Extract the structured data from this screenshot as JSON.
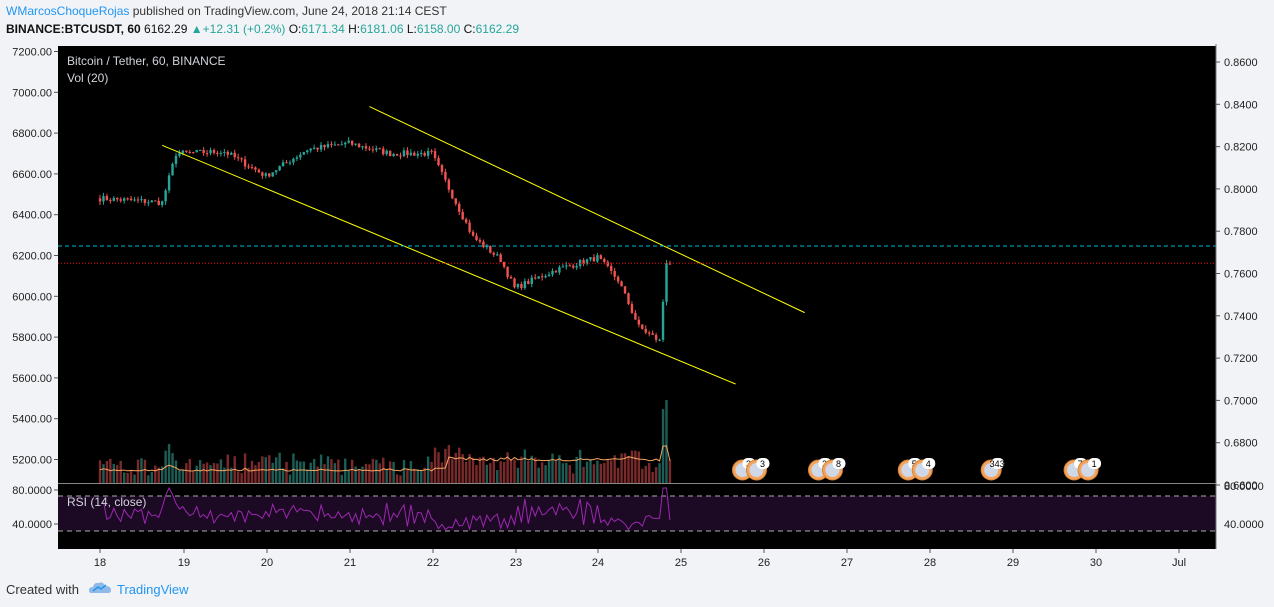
{
  "header": {
    "author": "WMarcosChoqueRojas",
    "published_text": " published on TradingView.com, June 24, 2018 21:14 CEST",
    "symbol_line": "BINANCE:BTCUSDT, 60",
    "last": "6162.29",
    "change": "▲+12.31 (+0.2%)",
    "o_label": "O:",
    "o": "6171.34",
    "h_label": "H:",
    "h": "6181.06",
    "l_label": "L:",
    "l": "6158.00",
    "c_label": "C:",
    "c": "6162.29"
  },
  "legend": {
    "title": "Bitcoin / Tether, 60, BINANCE",
    "volume": "Vol (20)",
    "rsi": "RSI (14, close)"
  },
  "colors": {
    "background": "#000000",
    "up": "#26a69a",
    "down": "#ef5350",
    "trendline": "#ffff00",
    "price_line": "#ff0000",
    "level_line": "#00bcd4",
    "rsi_line": "#9c27b0",
    "rsi_band": "#1c0a24",
    "vol_ma": "#f4a460"
  },
  "footer": {
    "created": "Created with",
    "brand": "TradingView"
  },
  "chart_data": {
    "type": "candlestick",
    "price_axis": {
      "ticks": [
        "7200.00",
        "7000.00",
        "6800.00",
        "6600.00",
        "6400.00",
        "6200.00",
        "6000.00",
        "5800.00",
        "5600.00",
        "5400.00",
        "5200.00"
      ],
      "ylim": [
        5200,
        7200
      ]
    },
    "right_axis": {
      "ticks": [
        "0.8600",
        "0.8400",
        "0.8200",
        "0.8000",
        "0.7800",
        "0.7600",
        "0.7400",
        "0.7200",
        "0.7000",
        "0.6800",
        "0.6600"
      ]
    },
    "rsi_axis": {
      "ticks": [
        "80.0000",
        "40.0000"
      ],
      "right_ticks": [
        "80.0000",
        "40.0000"
      ]
    },
    "x_ticks": [
      "18",
      "19",
      "20",
      "21",
      "22",
      "23",
      "24",
      "25",
      "26",
      "27",
      "28",
      "29",
      "30",
      "Jul"
    ],
    "price_labels": {
      "level": "6246.32",
      "last": "6162.29"
    },
    "levels": {
      "level": 6246.32,
      "last": 6162.29
    },
    "key_closes": [
      {
        "date": "2018-06-18 00:00",
        "value": 6480
      },
      {
        "date": "2018-06-18 18:00",
        "value": 6460
      },
      {
        "date": "2018-06-18 22:00",
        "value": 6700
      },
      {
        "date": "2018-06-19 12:00",
        "value": 6710
      },
      {
        "date": "2018-06-20 00:00",
        "value": 6590
      },
      {
        "date": "2018-06-20 12:00",
        "value": 6720
      },
      {
        "date": "2018-06-21 00:00",
        "value": 6750
      },
      {
        "date": "2018-06-21 12:00",
        "value": 6700
      },
      {
        "date": "2018-06-22 00:00",
        "value": 6700
      },
      {
        "date": "2018-06-22 12:00",
        "value": 6290
      },
      {
        "date": "2018-06-22 20:00",
        "value": 6180
      },
      {
        "date": "2018-06-23 00:00",
        "value": 6040
      },
      {
        "date": "2018-06-23 12:00",
        "value": 6130
      },
      {
        "date": "2018-06-24 00:00",
        "value": 6190
      },
      {
        "date": "2018-06-24 06:00",
        "value": 6080
      },
      {
        "date": "2018-06-24 12:00",
        "value": 5850
      },
      {
        "date": "2018-06-24 18:00",
        "value": 5780
      },
      {
        "date": "2018-06-24 20:00",
        "value": 6170
      },
      {
        "date": "2018-06-24 21:00",
        "value": 6162.29
      }
    ],
    "trendlines": [
      {
        "from": {
          "date": "2018-06-18 18:00",
          "value": 6740
        },
        "to": {
          "date": "2018-06-25 16:00",
          "value": 5570
        }
      },
      {
        "from": {
          "date": "2018-06-21 06:00",
          "value": 6930
        },
        "to": {
          "date": "2018-06-26 12:00",
          "value": 5920
        }
      }
    ],
    "event_markers": [
      {
        "date": "2018-06-25 18:00",
        "labels": [
          "3",
          "3"
        ]
      },
      {
        "date": "2018-06-26 16:00",
        "labels": [
          "2",
          "8"
        ]
      },
      {
        "date": "2018-06-27 18:00",
        "labels": [
          "5",
          "4"
        ]
      },
      {
        "date": "2018-06-28 18:00",
        "labels": [
          "343"
        ]
      },
      {
        "date": "2018-06-29 18:00",
        "labels": [
          "7",
          "1"
        ]
      }
    ],
    "grid": false
  }
}
